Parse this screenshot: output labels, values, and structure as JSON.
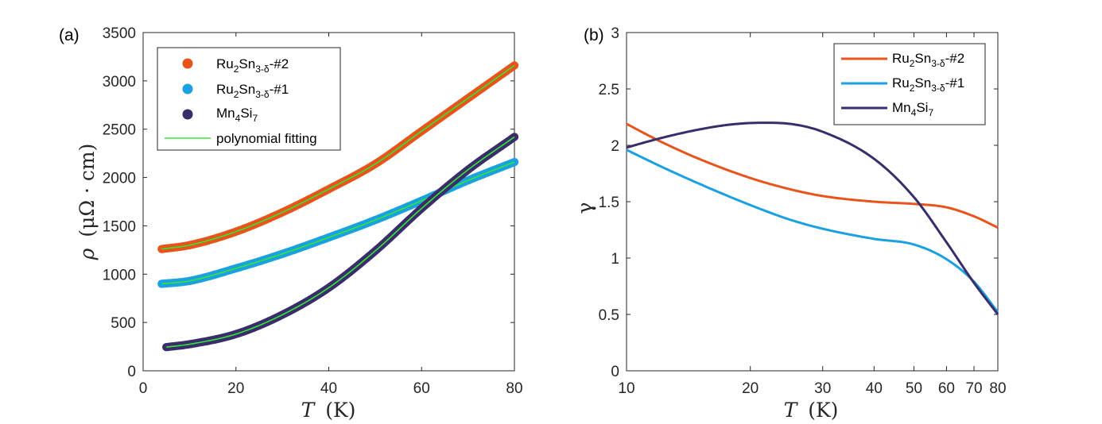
{
  "chart_data": [
    {
      "panel": "(a)",
      "type": "scatter",
      "xlabel_sym": "T",
      "xlabel_unit": "(K)",
      "ylabel_sym": "ρ",
      "ylabel_unit": "(μΩ · cm)",
      "xlim": [
        0,
        80
      ],
      "ylim": [
        0,
        3500
      ],
      "xticks": [
        0,
        20,
        40,
        60,
        80
      ],
      "yticks": [
        0,
        500,
        1000,
        1500,
        2000,
        2500,
        3000,
        3500
      ],
      "legend_position": "top-left",
      "series": [
        {
          "name_main": "Ru",
          "name_sub1": "2",
          "name_mid": "Sn",
          "name_sub2": "3-δ",
          "name_end": "-#2",
          "marker": "circle",
          "color": "#e8541b",
          "x": [
            4,
            10,
            20,
            30,
            40,
            50,
            60,
            70,
            80
          ],
          "y": [
            1260,
            1300,
            1440,
            1640,
            1880,
            2140,
            2480,
            2820,
            3160
          ]
        },
        {
          "name_main": "Ru",
          "name_sub1": "2",
          "name_mid": "Sn",
          "name_sub2": "3-δ",
          "name_end": "-#1",
          "marker": "circle",
          "color": "#1ba1e2",
          "x": [
            4,
            10,
            20,
            30,
            40,
            50,
            60,
            70,
            80
          ],
          "y": [
            900,
            930,
            1060,
            1210,
            1380,
            1560,
            1760,
            1970,
            2160
          ]
        },
        {
          "name_main": "Mn",
          "name_sub1": "4",
          "name_mid": "Si",
          "name_sub2": "7",
          "name_end": "",
          "marker": "circle",
          "color": "#3b2d6b",
          "x": [
            5,
            10,
            20,
            30,
            40,
            50,
            60,
            70,
            80
          ],
          "y": [
            245,
            275,
            380,
            580,
            860,
            1240,
            1680,
            2080,
            2420
          ]
        }
      ],
      "fit_legend": "polynomial fitting",
      "fit_color": "#33e633"
    },
    {
      "panel": "(b)",
      "type": "line",
      "xscale": "log",
      "xlabel_sym": "T",
      "xlabel_unit": "(K)",
      "ylabel": "γ",
      "xlim": [
        10,
        80
      ],
      "ylim": [
        0,
        3
      ],
      "xticks": [
        10,
        20,
        30,
        40,
        50,
        60,
        70,
        80
      ],
      "yticks": [
        0,
        0.5,
        1,
        1.5,
        2,
        2.5,
        3
      ],
      "ytick_labels": [
        "0",
        "0.5",
        "1",
        "1.5",
        "2",
        "2.5",
        "3"
      ],
      "legend_position": "top-right",
      "series": [
        {
          "name_main": "Ru",
          "name_sub1": "2",
          "name_mid": "Sn",
          "name_sub2": "3-δ",
          "name_end": "-#2",
          "color": "#e8541b",
          "x": [
            10,
            12,
            15,
            20,
            25,
            30,
            40,
            50,
            60,
            70,
            80
          ],
          "y": [
            2.19,
            2.04,
            1.88,
            1.71,
            1.61,
            1.55,
            1.5,
            1.48,
            1.45,
            1.37,
            1.27
          ]
        },
        {
          "name_main": "Ru",
          "name_sub1": "2",
          "name_mid": "Sn",
          "name_sub2": "3-δ",
          "name_end": "-#1",
          "color": "#1ba1e2",
          "x": [
            10,
            12,
            15,
            20,
            25,
            30,
            40,
            50,
            60,
            70,
            80
          ],
          "y": [
            1.96,
            1.82,
            1.66,
            1.47,
            1.34,
            1.26,
            1.17,
            1.12,
            0.99,
            0.79,
            0.52
          ]
        },
        {
          "name_main": "Mn",
          "name_sub1": "4",
          "name_mid": "Si",
          "name_sub2": "7",
          "name_end": "",
          "color": "#3b2d6b",
          "x": [
            10,
            12,
            15,
            18,
            21.5,
            25,
            30,
            40,
            50,
            60,
            70,
            80
          ],
          "y": [
            1.98,
            2.06,
            2.14,
            2.185,
            2.2,
            2.19,
            2.12,
            1.88,
            1.54,
            1.14,
            0.78,
            0.5
          ]
        }
      ]
    }
  ]
}
